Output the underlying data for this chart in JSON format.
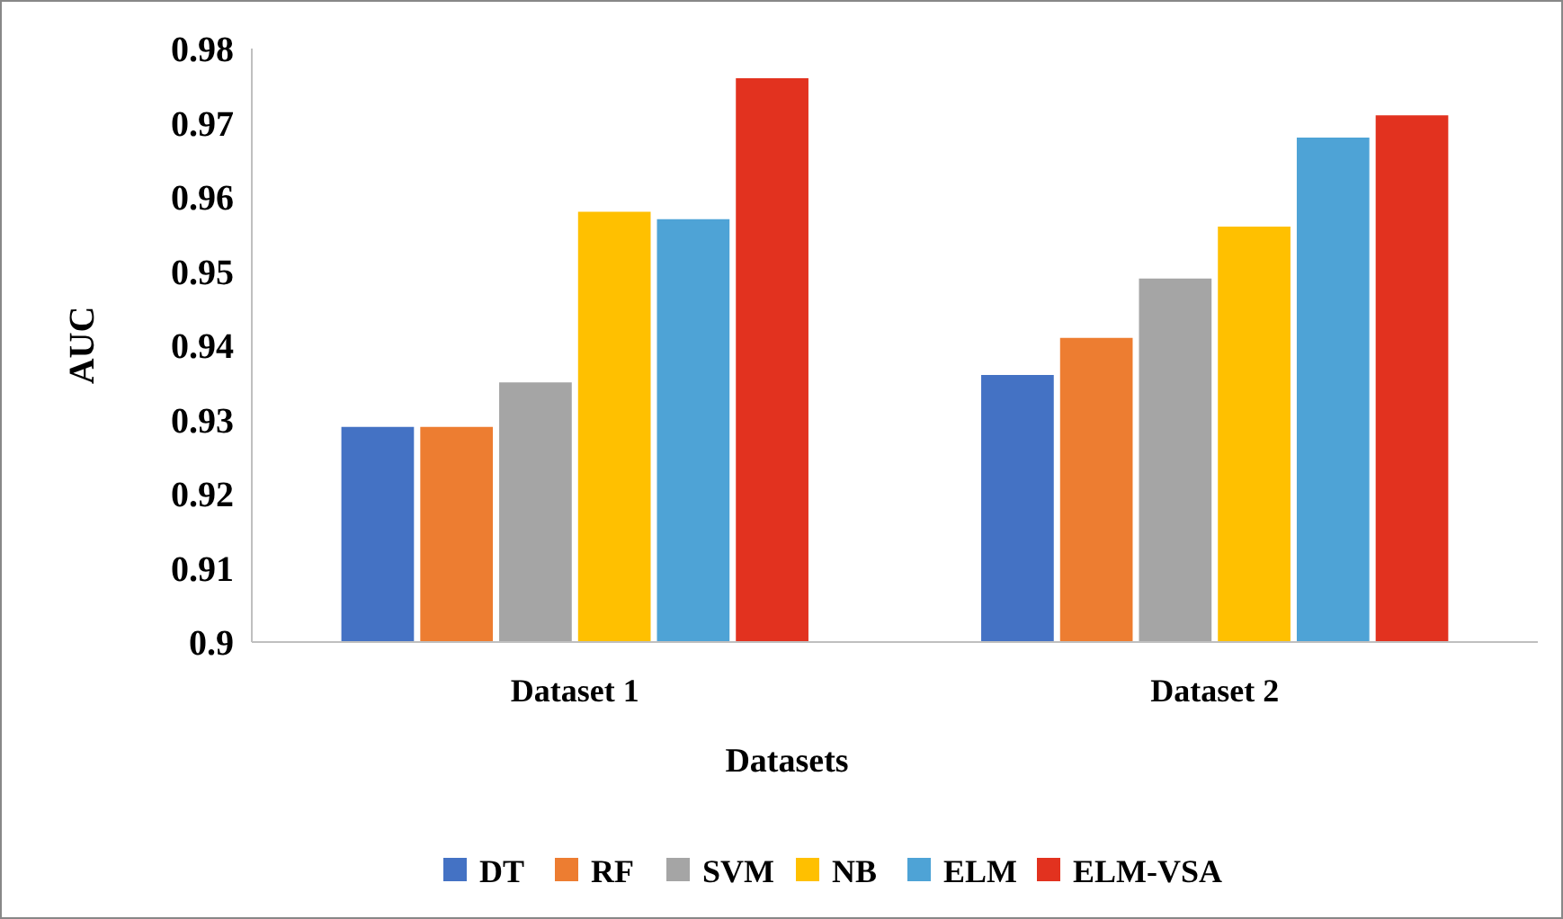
{
  "chart_data": {
    "type": "bar",
    "xlabel": "Datasets",
    "ylabel": "AUC",
    "categories": [
      "Dataset 1",
      "Dataset 2"
    ],
    "series": [
      {
        "name": "DT",
        "color": "#4472c4",
        "values": [
          0.929,
          0.936
        ]
      },
      {
        "name": "RF",
        "color": "#ed7d31",
        "values": [
          0.929,
          0.941
        ]
      },
      {
        "name": "SVM",
        "color": "#a5a5a5",
        "values": [
          0.935,
          0.949
        ]
      },
      {
        "name": "NB",
        "color": "#ffc000",
        "values": [
          0.958,
          0.956
        ]
      },
      {
        "name": "ELM",
        "color": "#4ea3d6",
        "values": [
          0.957,
          0.968
        ]
      },
      {
        "name": "ELM-VSA",
        "color": "#e2321f",
        "values": [
          0.976,
          0.971
        ]
      }
    ],
    "ylim": [
      0.9,
      0.98
    ],
    "yticks": [
      0.9,
      0.91,
      0.92,
      0.93,
      0.94,
      0.95,
      0.96,
      0.97,
      0.98
    ],
    "grid": false,
    "legend": "bottom"
  }
}
